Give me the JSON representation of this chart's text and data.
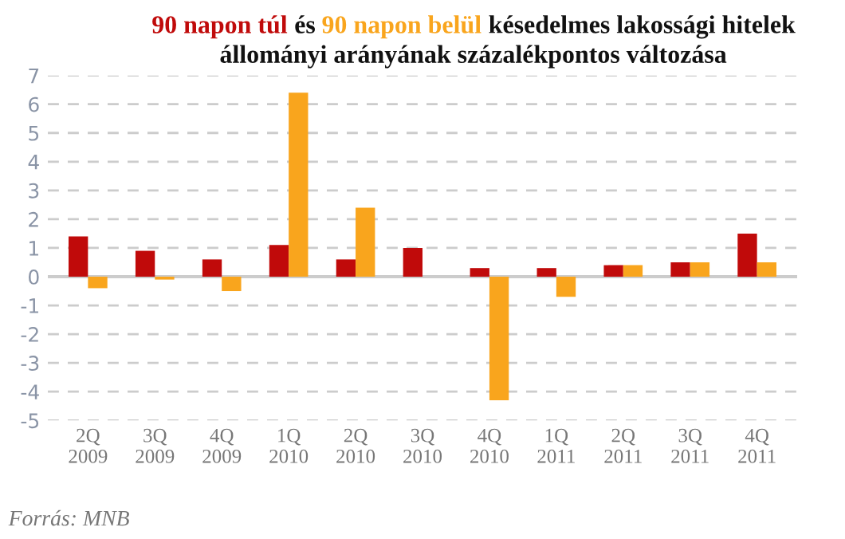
{
  "chart_data": {
    "type": "bar",
    "title": "késedelmes lakossági hitelek\nállományi arányának százalékpontos változása",
    "categories": [
      "2Q\n2009",
      "3Q\n2009",
      "4Q\n2009",
      "1Q\n2010",
      "2Q\n2010",
      "3Q\n2010",
      "4Q\n2010",
      "1Q\n2011",
      "2Q\n2011",
      "3Q\n2011",
      "4Q\n2011"
    ],
    "series": [
      {
        "name": "90 napon túl",
        "color": "#c00a0a",
        "values": [
          1.4,
          0.9,
          0.6,
          1.1,
          0.6,
          1.0,
          0.3,
          0.3,
          0.4,
          0.5,
          1.5
        ]
      },
      {
        "name": "90 napon belül",
        "color": "#f9a51d",
        "values": [
          -0.4,
          -0.1,
          -0.5,
          6.4,
          2.4,
          0.0,
          -4.3,
          -0.7,
          0.4,
          0.5,
          0.5
        ]
      }
    ],
    "ylim": [
      -5,
      7
    ],
    "yticks": [
      -5,
      -4,
      -3,
      -2,
      -1,
      0,
      1,
      2,
      3,
      4,
      5,
      6,
      7
    ],
    "grid": "y",
    "legend": false,
    "annotations": [
      "és",
      "Forrás: MNB"
    ]
  }
}
